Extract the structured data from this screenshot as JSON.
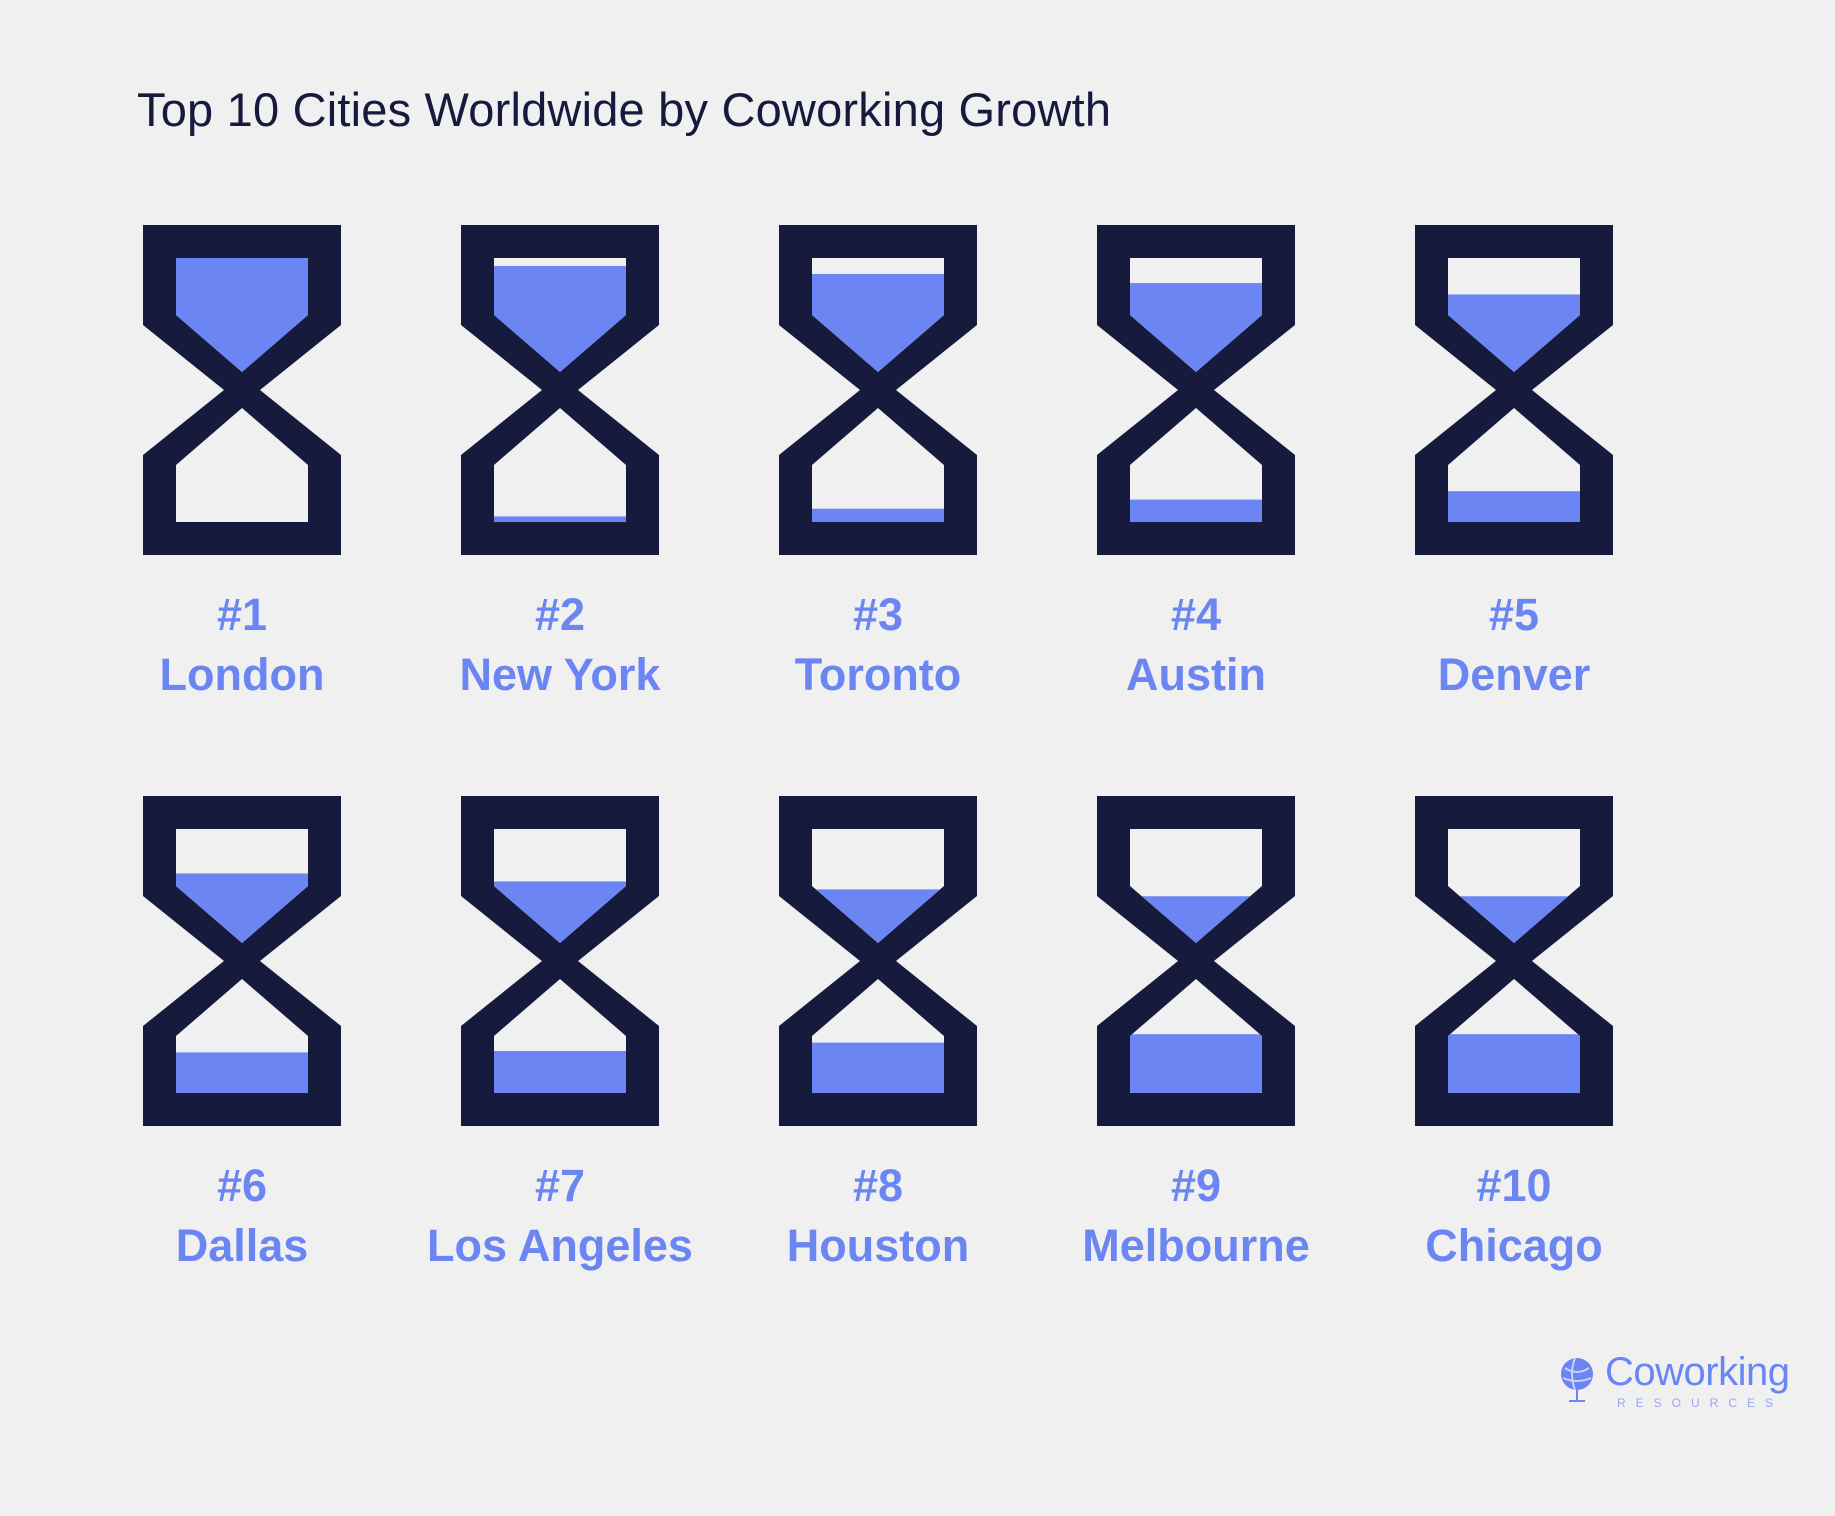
{
  "title": "Top 10 Cities Worldwide by Coworking Growth",
  "colors": {
    "frame": "#161a3c",
    "sand": "#6b86f2",
    "background": "#f0f0f0"
  },
  "cities": [
    {
      "rank": "#1",
      "name": "London",
      "top_fill": 1.0,
      "bottom_fill": 0.0
    },
    {
      "rank": "#2",
      "name": "New York",
      "top_fill": 0.93,
      "bottom_fill": 0.08
    },
    {
      "rank": "#3",
      "name": "Toronto",
      "top_fill": 0.86,
      "bottom_fill": 0.19
    },
    {
      "rank": "#4",
      "name": "Austin",
      "top_fill": 0.78,
      "bottom_fill": 0.32
    },
    {
      "rank": "#5",
      "name": "Denver",
      "top_fill": 0.68,
      "bottom_fill": 0.44
    },
    {
      "rank": "#6",
      "name": "Dallas",
      "top_fill": 0.61,
      "bottom_fill": 0.58
    },
    {
      "rank": "#7",
      "name": "Los Angeles",
      "top_fill": 0.54,
      "bottom_fill": 0.6
    },
    {
      "rank": "#8",
      "name": "Houston",
      "top_fill": 0.47,
      "bottom_fill": 0.72
    },
    {
      "rank": "#9",
      "name": "Melbourne",
      "top_fill": 0.41,
      "bottom_fill": 0.84
    },
    {
      "rank": "#10",
      "name": "Chicago",
      "top_fill": 0.41,
      "bottom_fill": 0.84
    }
  ],
  "logo": {
    "word": "Coworking",
    "sub": "RESOURCES",
    "icon": "globe-icon"
  }
}
